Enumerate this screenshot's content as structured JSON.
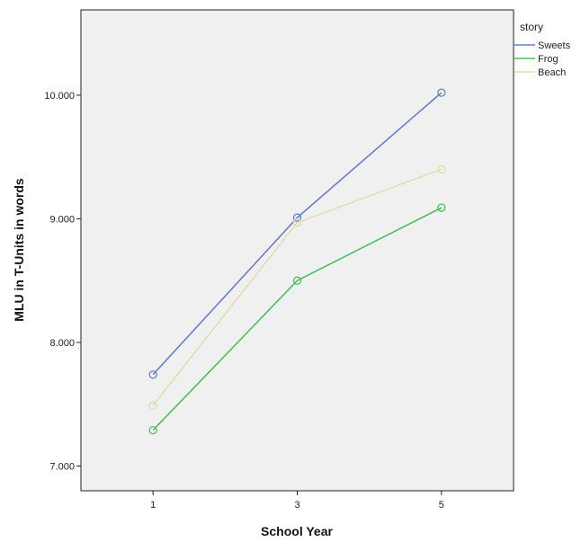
{
  "chart_data": {
    "type": "line",
    "title": "",
    "xlabel": "School Year",
    "ylabel": "MLU in T-Units in words",
    "x": [
      1,
      3,
      5
    ],
    "x_tick_labels": [
      "1",
      "3",
      "5"
    ],
    "xlim": [
      0,
      6
    ],
    "ylim": [
      6.8,
      10.69
    ],
    "y_ticks": [
      7,
      8,
      9,
      10
    ],
    "y_tick_labels": [
      "7.000",
      "8.000",
      "9.000",
      "10.000"
    ],
    "grid": false,
    "legend": {
      "title": "story",
      "position": "top-right"
    },
    "series": [
      {
        "name": "Sweets",
        "color": "#6b7fc4",
        "values": [
          7.74,
          9.01,
          10.02
        ]
      },
      {
        "name": "Frog",
        "color": "#4dbf5f",
        "values": [
          7.29,
          8.5,
          9.09
        ]
      },
      {
        "name": "Beach",
        "color": "#e2ddb0",
        "values": [
          7.49,
          8.97,
          9.4
        ]
      }
    ],
    "plot_background": "#f0f0f0",
    "marker": "open-circle"
  }
}
